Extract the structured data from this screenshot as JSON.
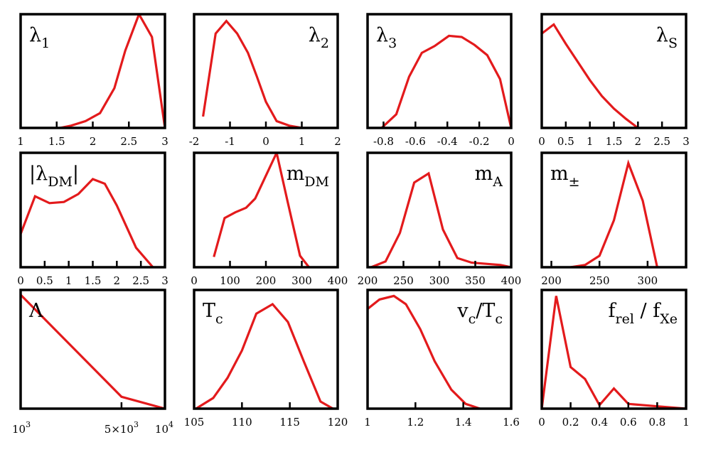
{
  "colors": {
    "curve": "#e31a1c",
    "frame": "#000000",
    "background": "#ffffff"
  },
  "chart_data": [
    {
      "type": "line",
      "title": "",
      "label": {
        "main": "λ",
        "sub": "1"
      },
      "label_position": "top-left",
      "xlim": [
        1,
        3
      ],
      "ylim": [
        0,
        1
      ],
      "xticks": [
        1,
        1.5,
        2,
        2.5,
        3
      ],
      "tick_labels": [
        "1",
        "1.5",
        "2",
        "2.5",
        "3"
      ],
      "x": [
        1.55,
        1.7,
        1.9,
        2.1,
        2.3,
        2.45,
        2.64,
        2.82,
        3.0
      ],
      "y": [
        0.0,
        0.02,
        0.06,
        0.13,
        0.35,
        0.68,
        1.0,
        0.8,
        0.0
      ]
    },
    {
      "type": "line",
      "title": "",
      "label": {
        "main": "λ",
        "sub": "2"
      },
      "label_position": "top-right",
      "xlim": [
        -2,
        2
      ],
      "ylim": [
        0,
        1
      ],
      "xticks": [
        -2,
        -1,
        0,
        1,
        2
      ],
      "tick_labels": [
        "-2",
        "-1",
        "0",
        "1",
        "2"
      ],
      "x": [
        -1.75,
        -1.4,
        -1.1,
        -0.8,
        -0.5,
        -0.25,
        0.0,
        0.3,
        0.65,
        1.0
      ],
      "y": [
        0.1,
        0.83,
        0.94,
        0.83,
        0.66,
        0.45,
        0.23,
        0.06,
        0.02,
        0.0
      ]
    },
    {
      "type": "line",
      "title": "",
      "label": {
        "main": "λ",
        "sub": "3"
      },
      "label_position": "top-left",
      "xlim": [
        -0.9,
        0
      ],
      "ylim": [
        0,
        1
      ],
      "xticks": [
        -0.8,
        -0.6,
        -0.4,
        -0.2,
        0
      ],
      "tick_labels": [
        "-0.8",
        "-0.6",
        "-0.4",
        "-0.2",
        "0"
      ],
      "x": [
        -0.85,
        -0.72,
        -0.64,
        -0.56,
        -0.48,
        -0.39,
        -0.31,
        -0.23,
        -0.15,
        -0.07,
        0.0
      ],
      "y": [
        -0.05,
        0.12,
        0.45,
        0.66,
        0.72,
        0.81,
        0.8,
        0.73,
        0.64,
        0.43,
        0.0
      ]
    },
    {
      "type": "line",
      "title": "",
      "label": {
        "main": "λ",
        "sub": "S"
      },
      "label_position": "top-right",
      "xlim": [
        0,
        3
      ],
      "ylim": [
        0,
        1
      ],
      "xticks": [
        0,
        0.5,
        1,
        1.5,
        2,
        2.5,
        3
      ],
      "tick_labels": [
        "0",
        "0.5",
        "1",
        "1.5",
        "2",
        "2.5",
        "3"
      ],
      "x": [
        0.0,
        0.25,
        0.5,
        0.75,
        1.0,
        1.25,
        1.5,
        1.75,
        2.0
      ],
      "y": [
        0.83,
        0.91,
        0.74,
        0.58,
        0.42,
        0.28,
        0.17,
        0.08,
        0.0
      ]
    },
    {
      "type": "line",
      "title": "",
      "label": {
        "main": "|λ",
        "sub": "DM",
        "after": "|"
      },
      "label_position": "top-left",
      "xlim": [
        0,
        3
      ],
      "ylim": [
        0,
        1
      ],
      "xticks": [
        0,
        0.5,
        1,
        1.5,
        2,
        2.5,
        3
      ],
      "tick_labels": [
        "0",
        "0.5",
        "1",
        "1.5",
        "2",
        "2.5",
        "3"
      ],
      "x": [
        0.0,
        0.3,
        0.6,
        0.9,
        1.2,
        1.5,
        1.75,
        2.0,
        2.4,
        2.75
      ],
      "y": [
        0.29,
        0.62,
        0.56,
        0.57,
        0.64,
        0.77,
        0.73,
        0.54,
        0.17,
        0.0
      ]
    },
    {
      "type": "line",
      "title": "",
      "label": {
        "main": "m",
        "sub": "DM"
      },
      "label_position": "top-right",
      "xlim": [
        0,
        400
      ],
      "ylim": [
        0,
        1
      ],
      "xticks": [
        0,
        100,
        200,
        300,
        400
      ],
      "tick_labels": [
        "0",
        "100",
        "200",
        "300",
        "400"
      ],
      "x": [
        55,
        85,
        115,
        145,
        170,
        200,
        230,
        260,
        295,
        320
      ],
      "y": [
        0.09,
        0.43,
        0.48,
        0.52,
        0.6,
        0.8,
        1.0,
        0.58,
        0.1,
        0.0
      ]
    },
    {
      "type": "line",
      "title": "",
      "label": {
        "main": "m",
        "sub": "A"
      },
      "label_position": "top-right",
      "xlim": [
        200,
        400
      ],
      "ylim": [
        0,
        1
      ],
      "xticks": [
        200,
        250,
        300,
        350,
        400
      ],
      "tick_labels": [
        "200",
        "250",
        "300",
        "350",
        "400"
      ],
      "x": [
        205,
        225,
        245,
        265,
        285,
        305,
        325,
        345,
        365,
        385,
        400
      ],
      "y": [
        0.0,
        0.05,
        0.3,
        0.74,
        0.82,
        0.33,
        0.08,
        0.04,
        0.03,
        0.02,
        0.0
      ]
    },
    {
      "type": "line",
      "title": "",
      "label": {
        "main": "m",
        "sub": "±"
      },
      "label_position": "top-left",
      "xlim": [
        190,
        340
      ],
      "ylim": [
        0,
        1
      ],
      "xticks": [
        200,
        250,
        300
      ],
      "tick_labels": [
        "200",
        "250",
        "300"
      ],
      "x": [
        220,
        235,
        250,
        265,
        280,
        295,
        310
      ],
      "y": [
        0.0,
        0.02,
        0.1,
        0.41,
        0.91,
        0.58,
        0.0
      ]
    },
    {
      "type": "line",
      "title": "",
      "label": {
        "main": "Λ"
      },
      "label_position": "top-left",
      "xscale": "log",
      "xlim": [
        1000,
        10000
      ],
      "ylim": [
        0,
        1
      ],
      "xticks": [
        1000,
        5000,
        10000
      ],
      "tick_labels_log": [
        {
          "base": "10",
          "exp": "3"
        },
        {
          "text": "5×10",
          "exp": "3"
        },
        {
          "base": "10",
          "exp": "4"
        }
      ],
      "x": [
        1000,
        5000,
        10000
      ],
      "y": [
        0.96,
        0.1,
        0.0
      ]
    },
    {
      "type": "line",
      "title": "",
      "label": {
        "main": "T",
        "sub": "c"
      },
      "label_position": "top-left",
      "xlim": [
        105,
        120
      ],
      "ylim": [
        0,
        1
      ],
      "xticks": [
        105,
        110,
        115,
        120
      ],
      "tick_labels": [
        "105",
        "110",
        "115",
        "120"
      ],
      "x": [
        105.2,
        107,
        108.5,
        110,
        111.5,
        113.2,
        114.8,
        116.5,
        118.2,
        119.5
      ],
      "y": [
        0.0,
        0.09,
        0.26,
        0.49,
        0.8,
        0.88,
        0.73,
        0.39,
        0.06,
        0.0
      ]
    },
    {
      "type": "line",
      "title": "",
      "label": {
        "main": "v",
        "sub": "c",
        "after": "/T",
        "sub2": "c"
      },
      "label_position": "top-right",
      "xlim": [
        1,
        1.6
      ],
      "ylim": [
        0,
        1
      ],
      "xticks": [
        1,
        1.2,
        1.4,
        1.6
      ],
      "tick_labels": [
        "1",
        "1.2",
        "1.4",
        "1.6"
      ],
      "x": [
        1.0,
        1.05,
        1.11,
        1.16,
        1.22,
        1.28,
        1.35,
        1.41,
        1.47
      ],
      "y": [
        0.84,
        0.92,
        0.95,
        0.88,
        0.67,
        0.4,
        0.16,
        0.04,
        0.0
      ]
    },
    {
      "type": "line",
      "title": "",
      "label": {
        "main": "f",
        "sub": "rel",
        "after": " / f",
        "sub2": "Xe"
      },
      "label_position": "top-right",
      "xlim": [
        0,
        1
      ],
      "ylim": [
        0,
        1
      ],
      "xticks": [
        0,
        0.2,
        0.4,
        0.6,
        0.8,
        1
      ],
      "tick_labels": [
        "0",
        "0.2",
        "0.4",
        "0.6",
        "0.8",
        "1"
      ],
      "x": [
        0.0,
        0.1,
        0.2,
        0.3,
        0.4,
        0.5,
        0.6,
        0.8,
        1.0
      ],
      "y": [
        0.0,
        0.95,
        0.35,
        0.25,
        0.03,
        0.17,
        0.04,
        0.02,
        0.0
      ]
    }
  ]
}
